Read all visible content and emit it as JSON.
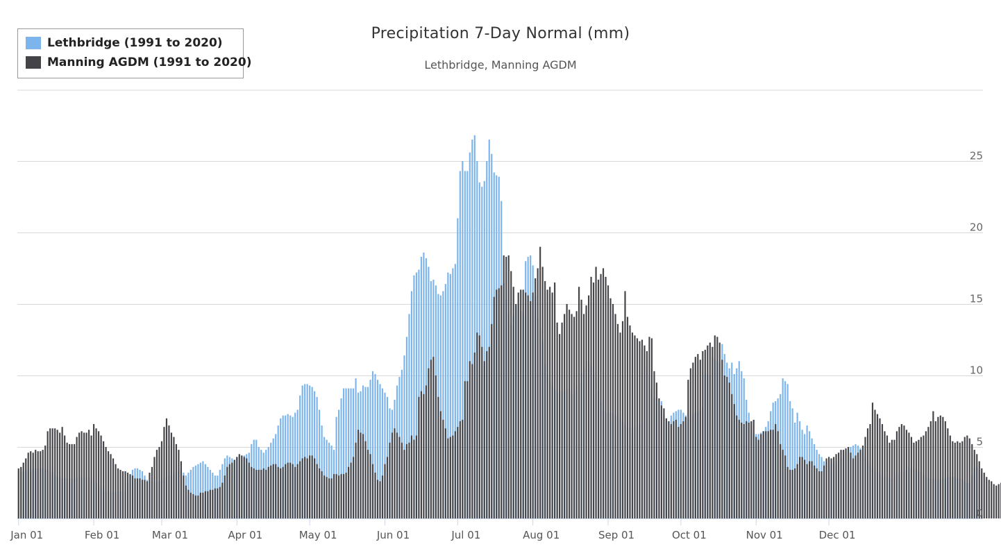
{
  "chart_data": {
    "type": "bar",
    "title": "Precipitation 7-Day Normal (mm)",
    "subtitle": "Lethbridge, Manning AGDM",
    "xlabel": "",
    "ylabel": "",
    "ylim": [
      0,
      30
    ],
    "y_ticks": [
      "0",
      "5",
      "10",
      "15",
      "20",
      "25"
    ],
    "x_tick_labels": [
      "Jan 01",
      "Feb 01",
      "Mar 01",
      "Apr 01",
      "May 01",
      "Jun 01",
      "Jul 01",
      "Aug 01",
      "Sep 01",
      "Oct 01",
      "Nov 01",
      "Dec 01"
    ],
    "grid": true,
    "legend_position": "top-left",
    "x_interval": "daily",
    "series": [
      {
        "name": "Lethbridge (1991 to 2020)",
        "color": "#7cb5ec",
        "values": [
          3.3,
          3.3,
          3.3,
          3.4,
          3.4,
          3.4,
          3.5,
          3.5,
          3.5,
          3.5,
          3.5,
          3.4,
          3.4,
          3.3,
          3.2,
          3.0,
          2.9,
          2.9,
          2.8,
          2.8,
          2.8,
          2.8,
          2.8,
          2.8,
          2.9,
          2.9,
          2.9,
          2.9,
          2.8,
          2.8,
          2.7,
          2.6,
          2.5,
          2.3,
          2.2,
          2.0,
          1.9,
          1.9,
          1.8,
          1.8,
          1.8,
          1.9,
          1.9,
          1.9,
          2.0,
          2.5,
          3.0,
          3.4,
          3.5,
          3.5,
          3.4,
          3.3,
          3.0,
          2.7,
          2.6,
          2.6,
          2.5,
          2.6,
          2.6,
          2.7,
          2.8,
          2.9,
          3.0,
          3.0,
          3.1,
          3.2,
          3.3,
          3.4,
          3.2,
          3.0,
          3.2,
          3.4,
          3.6,
          3.7,
          3.8,
          3.9,
          4.0,
          3.8,
          3.6,
          3.4,
          3.2,
          3.0,
          3.0,
          3.4,
          3.8,
          4.2,
          4.4,
          4.3,
          4.2,
          4.1,
          4.3,
          4.4,
          4.4,
          4.4,
          4.5,
          4.6,
          5.2,
          5.5,
          5.5,
          5.0,
          4.8,
          4.6,
          4.8,
          5.0,
          5.3,
          5.6,
          5.9,
          6.5,
          7.0,
          7.2,
          7.2,
          7.3,
          7.2,
          7.1,
          7.4,
          7.6,
          8.6,
          9.3,
          9.4,
          9.4,
          9.3,
          9.2,
          8.9,
          8.5,
          7.6,
          6.5,
          5.7,
          5.5,
          5.3,
          5.1,
          4.8,
          7.1,
          7.6,
          8.4,
          9.1,
          9.1,
          9.1,
          9.1,
          9.1,
          9.8,
          8.8,
          8.9,
          9.3,
          9.2,
          9.2,
          9.7,
          10.3,
          10.1,
          9.7,
          9.4,
          9.1,
          8.8,
          8.5,
          7.7,
          7.6,
          8.3,
          9.3,
          9.9,
          10.4,
          11.4,
          12.7,
          14.3,
          15.9,
          17.0,
          17.2,
          17.4,
          18.3,
          18.6,
          18.2,
          17.6,
          16.6,
          16.7,
          16.3,
          15.7,
          15.6,
          15.9,
          16.4,
          17.2,
          17.1,
          17.5,
          17.8,
          21.0,
          24.3,
          25.0,
          24.3,
          24.3,
          25.6,
          26.5,
          26.8,
          25.0,
          23.5,
          23.2,
          23.6,
          25.0,
          26.5,
          25.5,
          24.2,
          24.0,
          23.9,
          22.2,
          16.5,
          15.3,
          14.2,
          13.6,
          14.2,
          14.9,
          15.0,
          14.5,
          14.3,
          18.0,
          18.3,
          18.4,
          17.7,
          15.6,
          14.0,
          13.3,
          12.4,
          10.8,
          9.9,
          9.6,
          9.3,
          9.0,
          8.8,
          8.9,
          8.9,
          9.0,
          8.9,
          8.8,
          8.7,
          9.0,
          9.2,
          9.5,
          10.1,
          10.5,
          11.0,
          10.9,
          10.6,
          10.2,
          9.8,
          9.0,
          8.2,
          7.6,
          7.4,
          7.4,
          7.4,
          7.3,
          7.2,
          7.2,
          7.0,
          6.8,
          6.5,
          6.4,
          6.4,
          6.3,
          6.4,
          6.4,
          6.6,
          11.8,
          11.9,
          10.6,
          9.8,
          9.0,
          8.5,
          8.4,
          8.3,
          8.2,
          7.4,
          7.0,
          6.8,
          7.2,
          7.4,
          7.5,
          7.6,
          7.6,
          7.4,
          7.2,
          7.0,
          7.1,
          7.2,
          7.4,
          7.4,
          7.6,
          7.8,
          10.1,
          10.1,
          10.0,
          11.3,
          11.2,
          11.0,
          10.9,
          12.2,
          11.5,
          10.9,
          10.5,
          10.9,
          10.1,
          10.5,
          11.0,
          10.3,
          9.8,
          8.3,
          7.4,
          6.5,
          5.9,
          5.9,
          5.9,
          6.0,
          6.1,
          6.4,
          6.8,
          7.5,
          8.1,
          8.2,
          8.4,
          8.7,
          9.8,
          9.6,
          9.4,
          8.2,
          7.7,
          6.7,
          7.4,
          6.8,
          6.2,
          5.9,
          6.5,
          6.1,
          5.6,
          5.2,
          4.8,
          4.5,
          4.3,
          4.0,
          3.9,
          3.8,
          3.8,
          3.9,
          4.0,
          4.1,
          4.2,
          4.4,
          4.6,
          4.8,
          5.0,
          5.1,
          5.2,
          5.1,
          4.9,
          4.6,
          4.3,
          4.0,
          3.7,
          3.5,
          3.3,
          3.2,
          3.1,
          3.0,
          2.9,
          2.9,
          2.8,
          2.8,
          2.9,
          3.0,
          3.1,
          3.2,
          3.3,
          3.4,
          3.5,
          3.5,
          3.5,
          3.4,
          3.3,
          3.2,
          3.1,
          3.0,
          2.9,
          2.8,
          2.8,
          2.7,
          2.7,
          2.7,
          2.8,
          2.8,
          2.9,
          2.9,
          2.9,
          2.9,
          2.8,
          2.8,
          2.7,
          2.6,
          2.5,
          2.5,
          3.0,
          3.5,
          3.6,
          3.4,
          3.2
        ]
      },
      {
        "name": "Manning AGDM (1991 to 2020)",
        "color": "#434348",
        "values": [
          3.5,
          3.6,
          3.9,
          4.2,
          4.6,
          4.7,
          4.6,
          4.8,
          4.7,
          4.7,
          4.8,
          5.1,
          6.1,
          6.3,
          6.3,
          6.3,
          6.2,
          6.0,
          6.4,
          5.8,
          5.3,
          5.2,
          5.2,
          5.2,
          5.7,
          6.0,
          6.1,
          6.0,
          6.0,
          6.2,
          5.8,
          6.6,
          6.3,
          6.1,
          5.8,
          5.4,
          5.0,
          4.7,
          4.5,
          4.2,
          3.8,
          3.5,
          3.4,
          3.3,
          3.3,
          3.2,
          3.1,
          3.0,
          2.8,
          2.8,
          2.8,
          2.7,
          2.7,
          2.6,
          3.2,
          3.6,
          4.3,
          4.8,
          5.0,
          5.4,
          6.4,
          7.0,
          6.5,
          6.0,
          5.7,
          5.2,
          4.8,
          4.0,
          3.0,
          2.3,
          2.0,
          1.8,
          1.7,
          1.6,
          1.6,
          1.8,
          1.8,
          1.9,
          1.9,
          2.0,
          2.0,
          2.1,
          2.1,
          2.2,
          2.5,
          3.0,
          3.6,
          3.8,
          3.9,
          4.1,
          4.3,
          4.5,
          4.4,
          4.3,
          4.2,
          3.9,
          3.6,
          3.5,
          3.4,
          3.4,
          3.4,
          3.5,
          3.4,
          3.6,
          3.7,
          3.8,
          3.8,
          3.6,
          3.5,
          3.6,
          3.8,
          3.9,
          3.9,
          3.8,
          3.6,
          3.8,
          4.0,
          4.2,
          4.3,
          4.2,
          4.4,
          4.4,
          4.2,
          3.8,
          3.5,
          3.3,
          3.0,
          2.9,
          2.8,
          2.8,
          3.1,
          3.1,
          3.0,
          3.1,
          3.1,
          3.2,
          3.6,
          3.9,
          4.3,
          5.3,
          6.2,
          6.0,
          5.9,
          5.4,
          4.8,
          4.5,
          3.8,
          3.2,
          2.7,
          2.6,
          3.0,
          3.8,
          4.3,
          5.3,
          6.0,
          6.3,
          6.0,
          5.7,
          5.3,
          4.8,
          5.2,
          5.3,
          5.8,
          5.5,
          5.8,
          8.5,
          8.9,
          8.7,
          9.3,
          10.5,
          11.1,
          11.3,
          10.0,
          8.5,
          7.5,
          6.9,
          6.3,
          5.6,
          5.7,
          5.8,
          6.1,
          6.4,
          6.8,
          6.9,
          9.6,
          9.6,
          11.0,
          10.8,
          11.6,
          13.0,
          12.8,
          12.0,
          11.0,
          11.7,
          12.0,
          13.6,
          15.5,
          16.0,
          16.1,
          16.3,
          18.4,
          18.3,
          18.4,
          17.3,
          16.2,
          15.0,
          15.8,
          16.0,
          16.0,
          15.8,
          15.6,
          15.2,
          15.8,
          16.8,
          17.5,
          19.0,
          17.6,
          16.6,
          16.0,
          16.2,
          15.8,
          16.5,
          13.7,
          12.9,
          13.7,
          14.3,
          15.0,
          14.6,
          14.3,
          14.1,
          14.5,
          16.2,
          15.3,
          14.3,
          14.9,
          15.6,
          16.9,
          16.5,
          17.6,
          16.7,
          17.1,
          17.5,
          16.9,
          16.3,
          15.4,
          15.0,
          14.3,
          13.6,
          13.0,
          13.8,
          15.9,
          14.1,
          13.5,
          13.0,
          12.8,
          12.6,
          12.4,
          12.5,
          12.1,
          11.7,
          12.7,
          12.6,
          10.3,
          9.5,
          8.4,
          7.9,
          7.7,
          7.0,
          6.8,
          6.6,
          6.8,
          6.9,
          6.4,
          6.6,
          6.8,
          7.1,
          9.7,
          10.5,
          10.9,
          11.3,
          11.5,
          11.1,
          11.7,
          11.8,
          12.1,
          12.3,
          12.0,
          12.8,
          12.7,
          12.3,
          11.1,
          10.0,
          9.9,
          9.5,
          8.7,
          8.0,
          7.2,
          6.9,
          6.7,
          6.6,
          6.8,
          6.7,
          6.8,
          6.9,
          5.7,
          5.5,
          5.9,
          6.1,
          6.1,
          6.1,
          6.2,
          6.2,
          6.6,
          6.1,
          5.2,
          4.8,
          4.4,
          3.6,
          3.4,
          3.4,
          3.5,
          3.8,
          4.3,
          4.3,
          4.1,
          3.8,
          4.0,
          4.0,
          3.7,
          3.5,
          3.3,
          3.3,
          3.7,
          4.2,
          4.3,
          4.2,
          4.3,
          4.5,
          4.6,
          4.8,
          4.8,
          4.9,
          5.0,
          4.6,
          4.2,
          4.4,
          4.6,
          4.8,
          5.1,
          5.7,
          6.3,
          6.6,
          8.1,
          7.6,
          7.3,
          7.0,
          6.6,
          6.1,
          5.8,
          5.3,
          5.5,
          5.5,
          6.1,
          6.4,
          6.6,
          6.5,
          6.2,
          6.0,
          5.7,
          5.3,
          5.4,
          5.5,
          5.7,
          5.8,
          6.1,
          6.4,
          6.8,
          7.5,
          6.8,
          7.1,
          7.2,
          7.1,
          6.8,
          6.3,
          5.8,
          5.4,
          5.3,
          5.4,
          5.3,
          5.4,
          5.7,
          5.8,
          5.6,
          5.2,
          4.8,
          4.5,
          4.0,
          3.5,
          3.2,
          2.9,
          2.7,
          2.6,
          2.4,
          2.3,
          2.4,
          2.5,
          2.7
        ]
      }
    ]
  }
}
